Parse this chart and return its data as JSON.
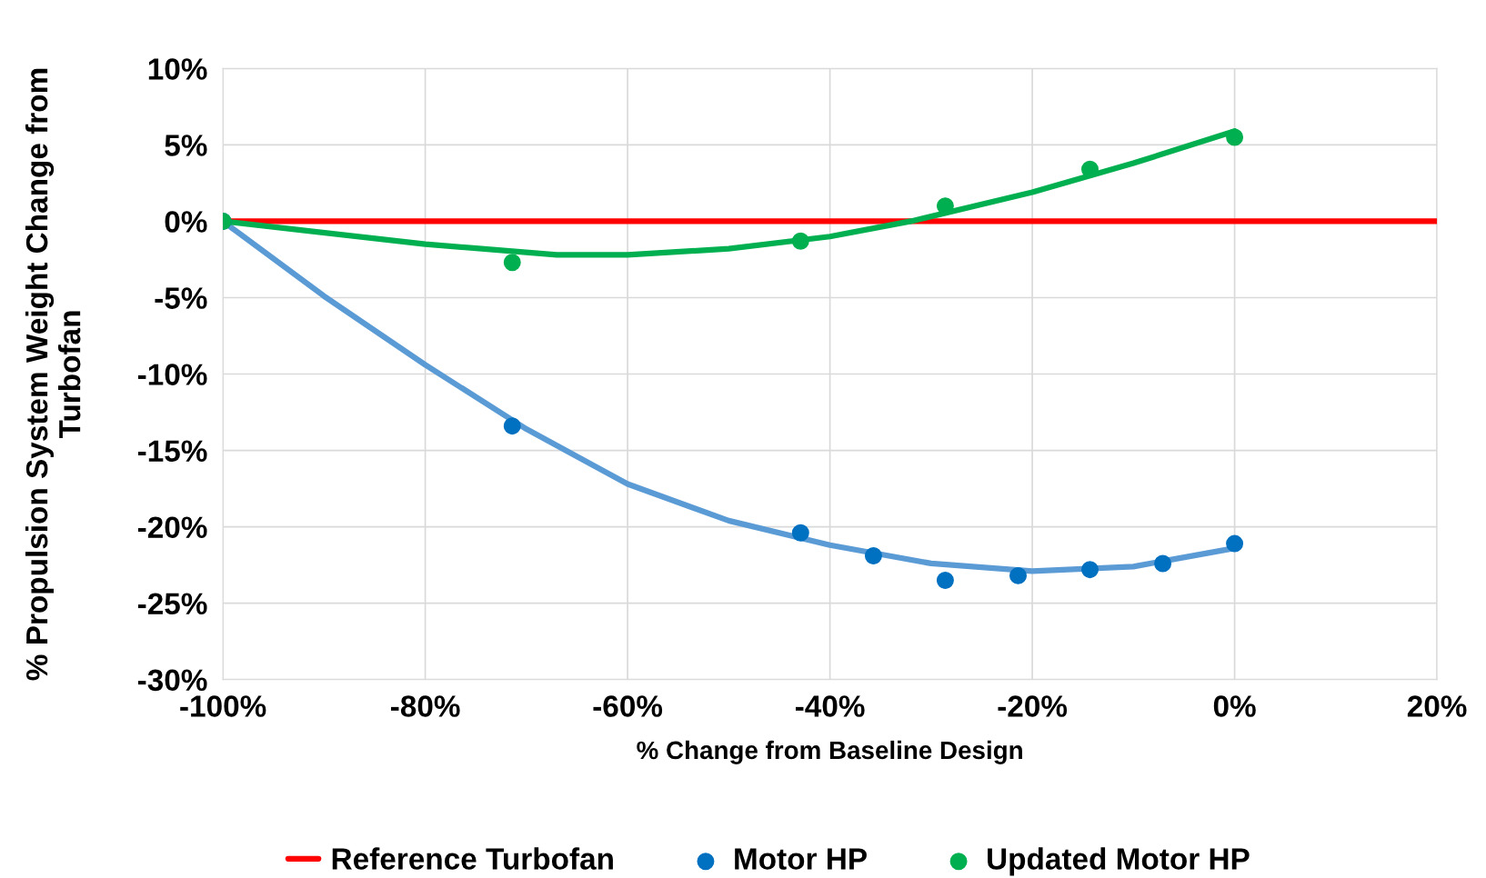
{
  "chart_data": {
    "type": "scatter",
    "xlabel": "% Change from Baseline Design",
    "ylabel": "% Propulsion System Weight Change from\nTurbofan",
    "xlim": [
      -100,
      20
    ],
    "xticks": [
      {
        "value": -100,
        "label": "-100%"
      },
      {
        "value": -80,
        "label": "-80%"
      },
      {
        "value": -60,
        "label": "-60%"
      },
      {
        "value": -40,
        "label": "-40%"
      },
      {
        "value": -20,
        "label": "-20%"
      },
      {
        "value": 0,
        "label": "0%"
      },
      {
        "value": 20,
        "label": "20%"
      }
    ],
    "ylim": [
      -30,
      10
    ],
    "yticks": [
      {
        "value": -30,
        "label": "-30%"
      },
      {
        "value": -25,
        "label": "-25%"
      },
      {
        "value": -20,
        "label": "-20%"
      },
      {
        "value": -15,
        "label": "-15%"
      },
      {
        "value": -10,
        "label": "-10%"
      },
      {
        "value": -5,
        "label": "-5%"
      },
      {
        "value": 0,
        "label": "0%"
      },
      {
        "value": 5,
        "label": "5%"
      },
      {
        "value": 10,
        "label": "10%"
      }
    ],
    "grid": true,
    "legend": "bottom",
    "series": [
      {
        "name": "Reference Turbofan",
        "type": "line",
        "marker": "none",
        "line_style": "solid",
        "color": "#ff0000",
        "x": [
          -100,
          20
        ],
        "values": [
          0,
          0
        ]
      },
      {
        "name": "Motor HP",
        "marker": "circle",
        "color": "#0070c0",
        "x": [
          -100,
          -71.4,
          -42.9,
          -35.7,
          -28.6,
          -21.4,
          -14.3,
          -7.1,
          0
        ],
        "values": [
          0,
          -13.4,
          -20.4,
          -21.9,
          -23.5,
          -23.2,
          -22.8,
          -22.4,
          -21.1
        ]
      },
      {
        "name": "Updated Motor HP",
        "marker": "circle",
        "color": "#00b050",
        "x": [
          -100,
          -71.4,
          -42.9,
          -28.6,
          -14.3,
          0
        ],
        "values": [
          0,
          -2.7,
          -1.3,
          1.0,
          3.4,
          5.5
        ]
      },
      {
        "type": "line",
        "marker": "none",
        "line_style": "solid",
        "color": "#5b9bd5",
        "x": [
          -100,
          -90,
          -80,
          -70,
          -60,
          -50,
          -40,
          -30,
          -20,
          -10,
          0
        ],
        "values": [
          0,
          -4.9,
          -9.4,
          -13.6,
          -17.2,
          -19.6,
          -21.2,
          -22.4,
          -22.9,
          -22.6,
          -21.4
        ]
      },
      {
        "type": "line",
        "marker": "none",
        "line_style": "solid",
        "color": "#00b050",
        "x": [
          -100,
          -80,
          -67,
          -60,
          -50,
          -40,
          -32,
          -20,
          -10,
          0
        ],
        "values": [
          0,
          -1.5,
          -2.2,
          -2.2,
          -1.8,
          -1.0,
          0,
          1.9,
          3.8,
          5.9
        ]
      }
    ]
  }
}
